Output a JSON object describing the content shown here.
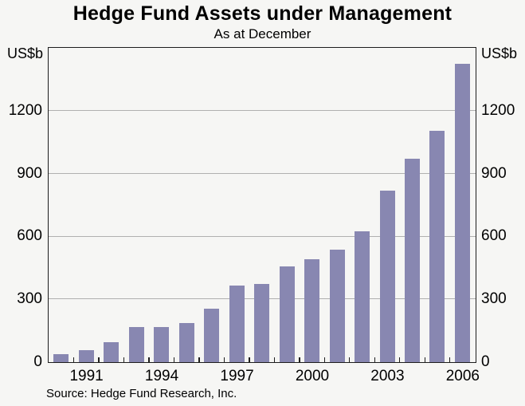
{
  "header": {
    "title": "Hedge Fund Assets under Management",
    "subtitle": "As at December"
  },
  "axes": {
    "left_unit": "US$b",
    "right_unit": "US$b"
  },
  "footer": {
    "source": "Source: Hedge Fund Research, Inc."
  },
  "chart_data": {
    "type": "bar",
    "title": "Hedge Fund Assets under Management",
    "subtitle": "As at December",
    "xlabel": "",
    "ylabel": "US$b",
    "categories": [
      "1990",
      "1991",
      "1992",
      "1993",
      "1994",
      "1995",
      "1996",
      "1997",
      "1998",
      "1999",
      "2000",
      "2001",
      "2002",
      "2003",
      "2004",
      "2005",
      "2006"
    ],
    "values": [
      39,
      58,
      96,
      168,
      167,
      186,
      257,
      368,
      375,
      456,
      491,
      539,
      626,
      820,
      973,
      1105,
      1427
    ],
    "ylim": [
      0,
      1500
    ],
    "yticks": [
      0,
      300,
      600,
      900,
      1200
    ],
    "xtick_labels": [
      "1991",
      "1994",
      "1997",
      "2000",
      "2003",
      "2006"
    ],
    "grid": "horizontal",
    "legend": "none",
    "colors": {
      "bar": "#8887b1",
      "gridline": "#b0b0b0",
      "frame": "#1d1d1d",
      "tick": "#1d1d1d",
      "background": "#f6f6f4",
      "text": "#000000"
    }
  }
}
